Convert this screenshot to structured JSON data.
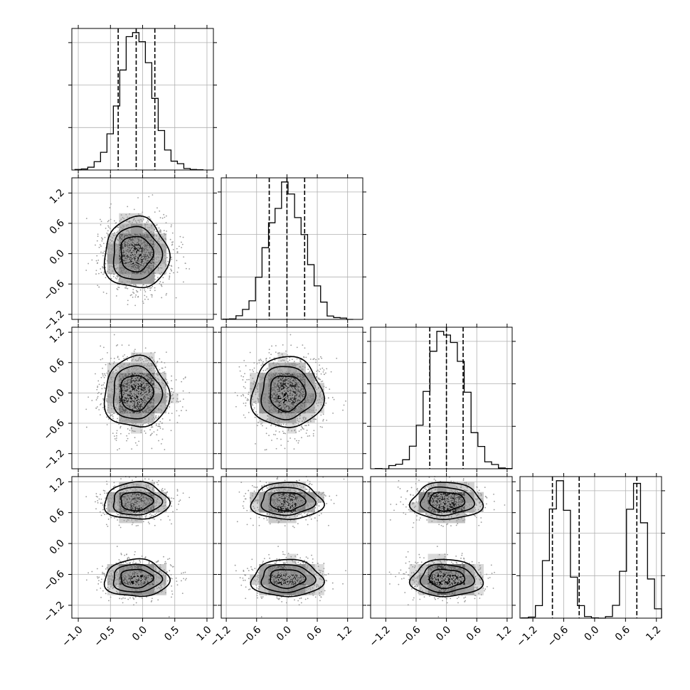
{
  "chart_data": {
    "type": "corner",
    "n_params": 4,
    "grid": true,
    "parameters": [
      {
        "index": 0,
        "range": [
          -1.1,
          1.1
        ],
        "ticks": [
          -1.0,
          -0.5,
          0.0,
          0.5,
          1.0
        ],
        "tick_labels": [
          "−1.0",
          "−0.5",
          "0.0",
          "0.5",
          "1.0"
        ],
        "distribution": {
          "kind": "normal",
          "mean": -0.1,
          "sd": 0.25
        },
        "quantiles": [
          -0.38,
          -0.1,
          0.19
        ]
      },
      {
        "index": 1,
        "range": [
          -1.3,
          1.5
        ],
        "ticks": [
          -1.2,
          -0.6,
          0.0,
          0.6,
          1.2
        ],
        "tick_labels": [
          "−1.2",
          "−0.6",
          "0.0",
          "0.6",
          "1.2"
        ],
        "distribution": {
          "kind": "normal",
          "mean": 0.0,
          "sd": 0.35
        },
        "quantiles": [
          -0.35,
          0.0,
          0.35
        ]
      },
      {
        "index": 2,
        "range": [
          -1.5,
          1.3
        ],
        "ticks": [
          -1.2,
          -0.6,
          0.0,
          0.6,
          1.2
        ],
        "tick_labels": [
          "−1.2",
          "−0.6",
          "0.0",
          "0.6",
          "1.2"
        ],
        "distribution": {
          "kind": "normal",
          "mean": 0.0,
          "sd": 0.35
        },
        "quantiles": [
          -0.33,
          0.0,
          0.33
        ]
      },
      {
        "index": 3,
        "range": [
          -1.45,
          1.3
        ],
        "ticks": [
          -1.2,
          -0.6,
          0.0,
          0.6,
          1.2
        ],
        "tick_labels": [
          "−1.2",
          "−0.6",
          "0.0",
          "0.6",
          "1.2"
        ],
        "distribution": {
          "kind": "bimodal",
          "modes": [
            -0.68,
            0.82
          ],
          "sd": 0.18,
          "weights": [
            0.5,
            0.5
          ]
        },
        "quantiles": [
          -0.82,
          -0.3,
          0.82
        ]
      }
    ],
    "row_labels_visible": [
      {
        "row": 1,
        "ticks": [
          "−1.2",
          "−0.6",
          "0.0",
          "0.6",
          "1.2"
        ]
      },
      {
        "row": 2,
        "ticks": [
          "−1.2",
          "−0.6",
          "0.0",
          "0.6",
          "1.2"
        ]
      },
      {
        "row": 3,
        "ticks": [
          "−1.2",
          "−0.6",
          "0.0",
          "0.6",
          "1.2"
        ]
      }
    ],
    "contour_levels_sigma": [
      0.5,
      1.0,
      1.5,
      2.0
    ]
  }
}
